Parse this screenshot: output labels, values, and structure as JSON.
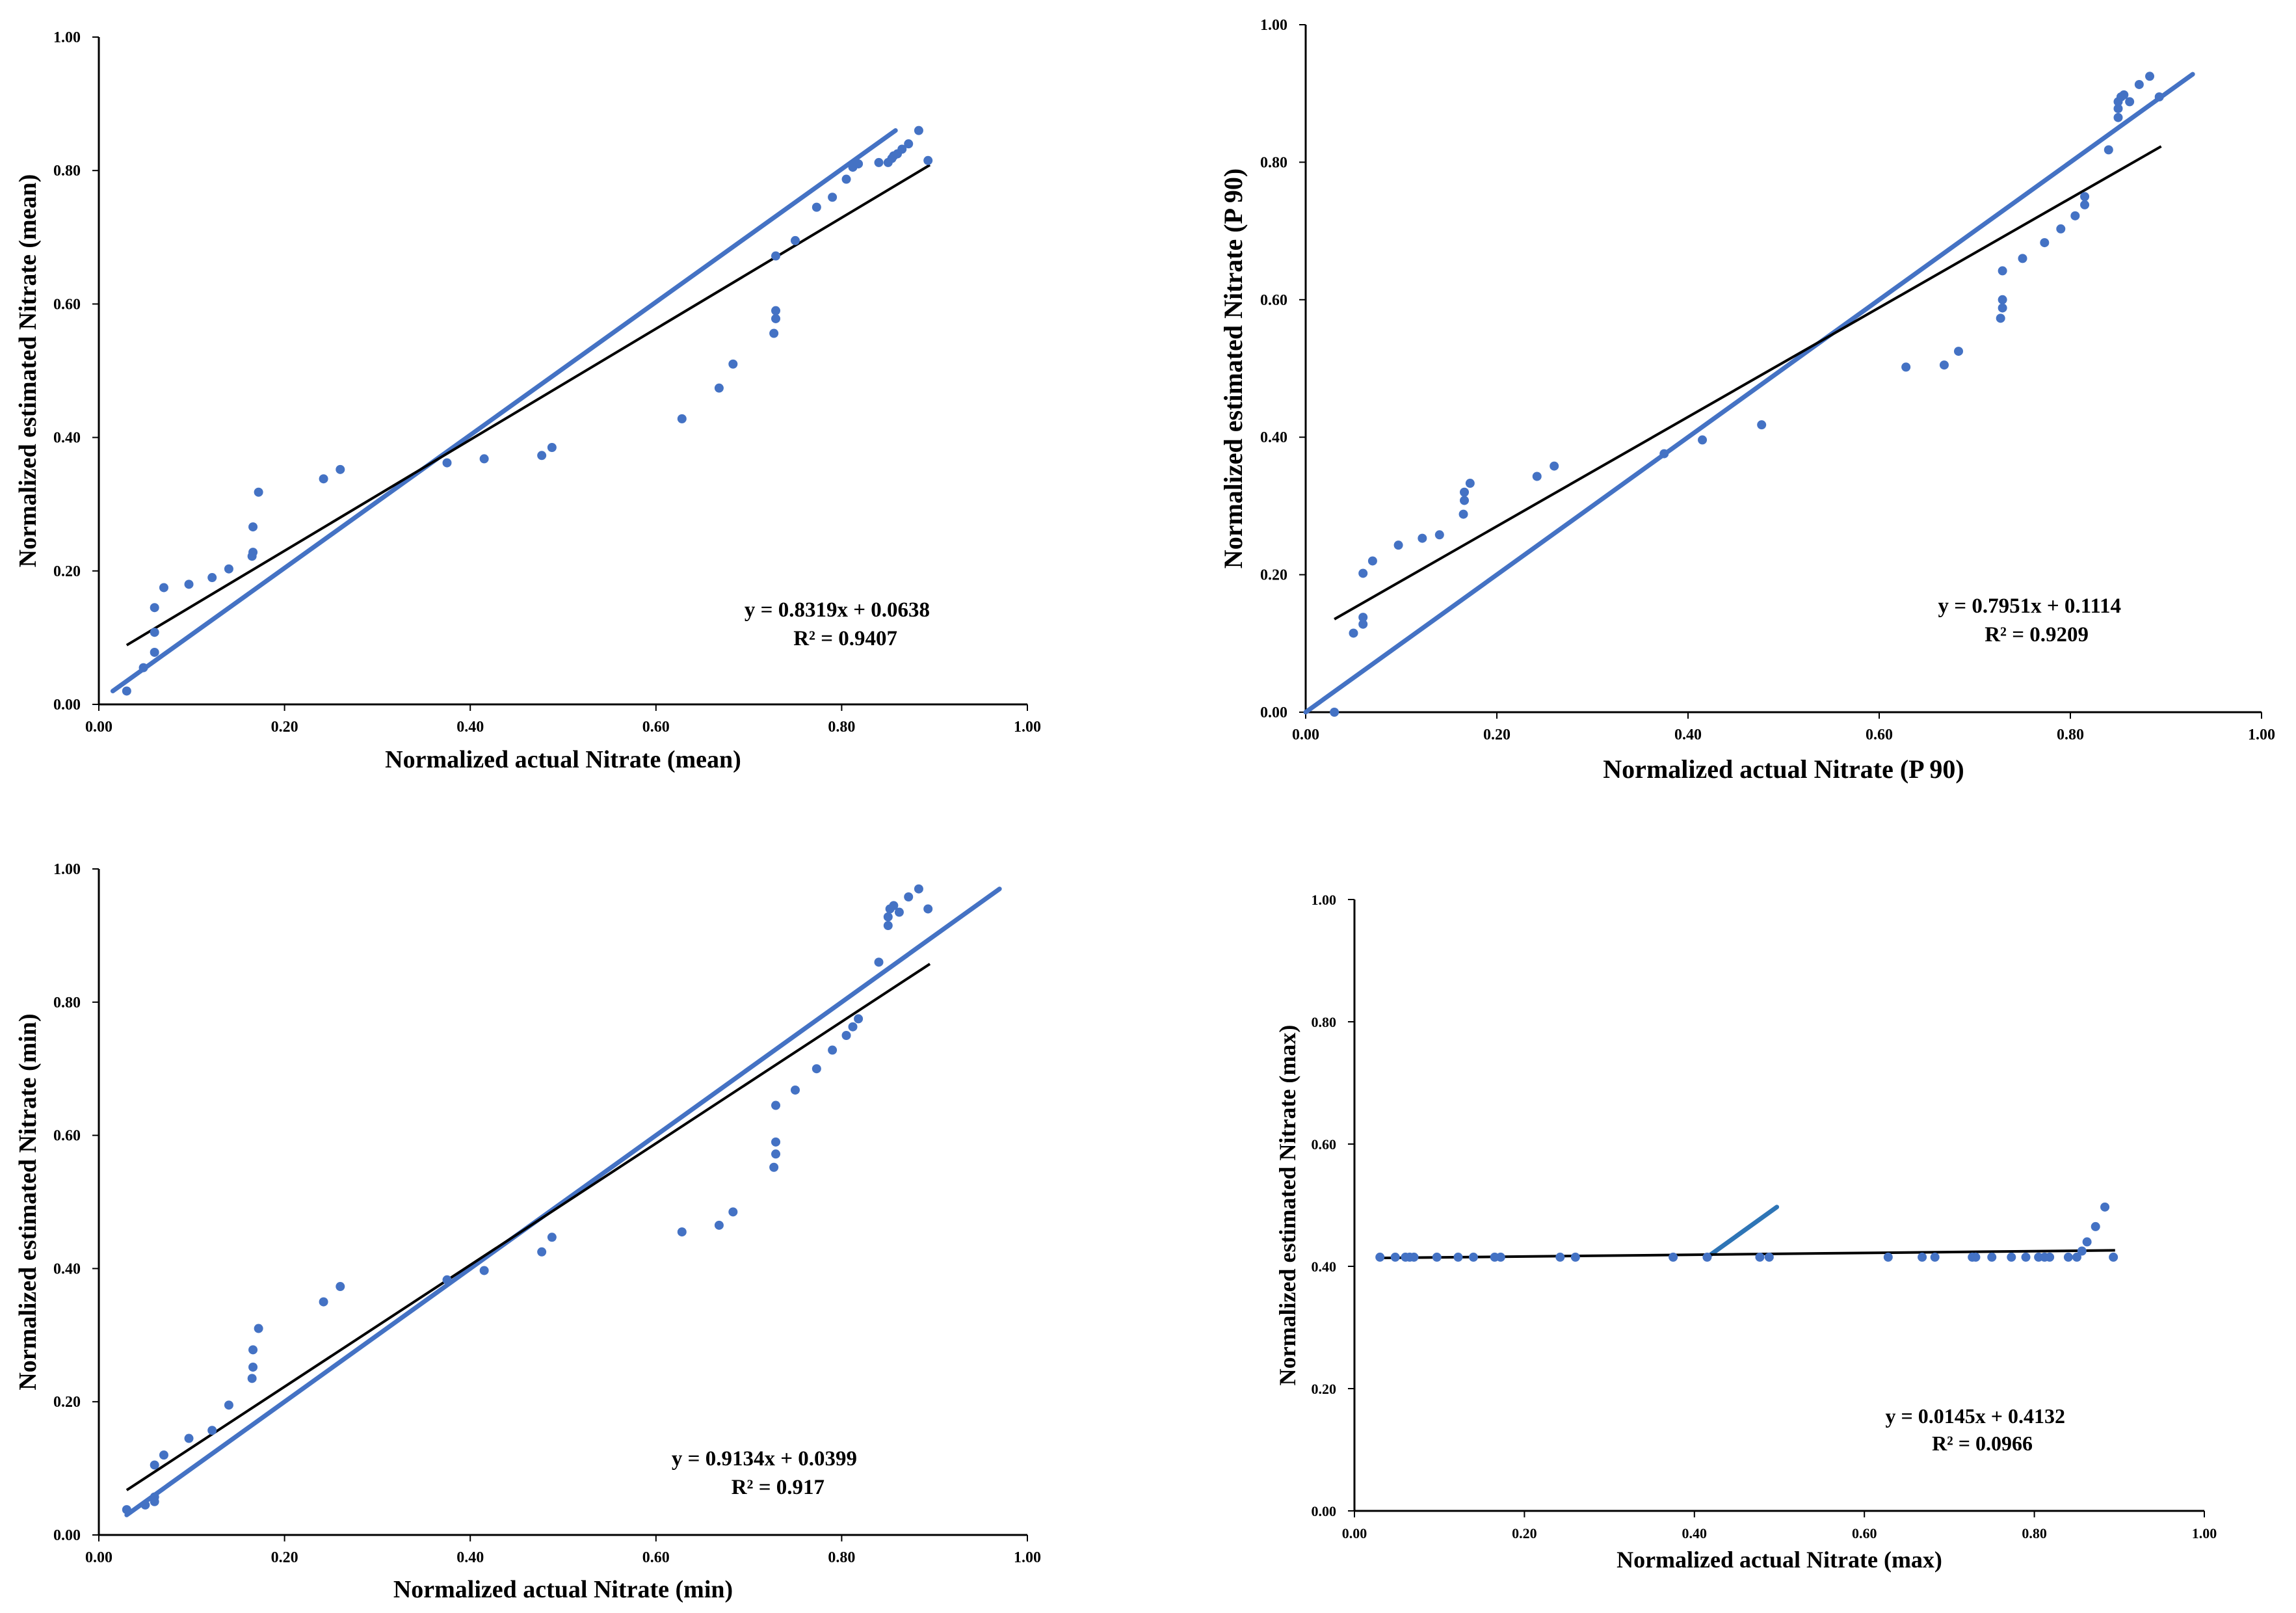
{
  "colors": {
    "points": "#4472C4",
    "identity_line": "#4472C4",
    "identity_line_max_panel": "#2E75B6",
    "fit_line": "#000000",
    "axis": "#000000"
  },
  "chart_data": [
    {
      "type": "scatter",
      "panel": "top-left",
      "xlabel": "Normalized actual Nitrate (mean)",
      "ylabel": "Normalized estimated Nitrate  (mean)",
      "xlim": [
        0,
        1
      ],
      "ylim": [
        0,
        1
      ],
      "x_ticks": [
        "0.00",
        "0.20",
        "0.40",
        "0.60",
        "0.80",
        "1.00"
      ],
      "y_ticks": [
        "0.00",
        "0.20",
        "0.40",
        "0.60",
        "0.80",
        "1.00"
      ],
      "equation": "y = 0.8319x + 0.0638",
      "r_squared": "R² = 0.9407",
      "trendline": {
        "slope": 0.8319,
        "intercept": 0.0638,
        "x_range": [
          0.03,
          0.895
        ]
      },
      "reference_line": {
        "x1": 0.015,
        "y1": 0.02,
        "x2": 0.858,
        "y2": 0.86
      },
      "points": [
        [
          0.03,
          0.02
        ],
        [
          0.048,
          0.055
        ],
        [
          0.06,
          0.078
        ],
        [
          0.06,
          0.108
        ],
        [
          0.06,
          0.145
        ],
        [
          0.07,
          0.175
        ],
        [
          0.097,
          0.18
        ],
        [
          0.122,
          0.19
        ],
        [
          0.14,
          0.203
        ],
        [
          0.165,
          0.222
        ],
        [
          0.166,
          0.228
        ],
        [
          0.166,
          0.266
        ],
        [
          0.172,
          0.318
        ],
        [
          0.242,
          0.338
        ],
        [
          0.26,
          0.352
        ],
        [
          0.375,
          0.362
        ],
        [
          0.415,
          0.368
        ],
        [
          0.477,
          0.373
        ],
        [
          0.488,
          0.385
        ],
        [
          0.628,
          0.428
        ],
        [
          0.668,
          0.474
        ],
        [
          0.683,
          0.51
        ],
        [
          0.727,
          0.556
        ],
        [
          0.729,
          0.578
        ],
        [
          0.729,
          0.59
        ],
        [
          0.729,
          0.672
        ],
        [
          0.75,
          0.695
        ],
        [
          0.773,
          0.745
        ],
        [
          0.79,
          0.76
        ],
        [
          0.805,
          0.787
        ],
        [
          0.812,
          0.805
        ],
        [
          0.818,
          0.81
        ],
        [
          0.84,
          0.812
        ],
        [
          0.85,
          0.812
        ],
        [
          0.854,
          0.818
        ],
        [
          0.856,
          0.822
        ],
        [
          0.86,
          0.825
        ],
        [
          0.865,
          0.832
        ],
        [
          0.872,
          0.84
        ],
        [
          0.883,
          0.86
        ],
        [
          0.893,
          0.815
        ]
      ]
    },
    {
      "type": "scatter",
      "panel": "top-right",
      "xlabel": "Normalized actual Nitrate (P 90)",
      "ylabel": "Normalized estimated Nitrate  (P 90)",
      "xlim": [
        0,
        1
      ],
      "ylim": [
        0,
        1
      ],
      "x_ticks": [
        "0.00",
        "0.20",
        "0.40",
        "0.60",
        "0.80",
        "1.00"
      ],
      "y_ticks": [
        "0.00",
        "0.20",
        "0.40",
        "0.60",
        "0.80",
        "1.00"
      ],
      "equation": "y = 0.7951x + 0.1114",
      "r_squared": "R² = 0.9209",
      "trendline": {
        "slope": 0.7951,
        "intercept": 0.1114,
        "x_range": [
          0.03,
          0.895
        ]
      },
      "reference_line": {
        "x1": 0.0,
        "y1": 0.0,
        "x2": 0.928,
        "y2": 0.928
      },
      "points": [
        [
          0.03,
          0.0
        ],
        [
          0.05,
          0.115
        ],
        [
          0.06,
          0.128
        ],
        [
          0.06,
          0.138
        ],
        [
          0.06,
          0.202
        ],
        [
          0.07,
          0.22
        ],
        [
          0.097,
          0.243
        ],
        [
          0.122,
          0.253
        ],
        [
          0.14,
          0.258
        ],
        [
          0.165,
          0.288
        ],
        [
          0.166,
          0.308
        ],
        [
          0.166,
          0.32
        ],
        [
          0.172,
          0.333
        ],
        [
          0.242,
          0.343
        ],
        [
          0.26,
          0.358
        ],
        [
          0.375,
          0.376
        ],
        [
          0.415,
          0.396
        ],
        [
          0.477,
          0.418
        ],
        [
          0.628,
          0.502
        ],
        [
          0.668,
          0.505
        ],
        [
          0.683,
          0.525
        ],
        [
          0.727,
          0.573
        ],
        [
          0.729,
          0.588
        ],
        [
          0.729,
          0.6
        ],
        [
          0.729,
          0.642
        ],
        [
          0.75,
          0.66
        ],
        [
          0.773,
          0.683
        ],
        [
          0.79,
          0.703
        ],
        [
          0.805,
          0.722
        ],
        [
          0.815,
          0.738
        ],
        [
          0.815,
          0.75
        ],
        [
          0.84,
          0.818
        ],
        [
          0.85,
          0.865
        ],
        [
          0.85,
          0.878
        ],
        [
          0.85,
          0.888
        ],
        [
          0.853,
          0.895
        ],
        [
          0.856,
          0.898
        ],
        [
          0.862,
          0.888
        ],
        [
          0.872,
          0.913
        ],
        [
          0.883,
          0.925
        ],
        [
          0.893,
          0.895
        ]
      ]
    },
    {
      "type": "scatter",
      "panel": "bottom-left",
      "xlabel": "Normalized actual Nitrate (min)",
      "ylabel": "Normalized estimated Nitrate  (min)",
      "xlim": [
        0,
        1
      ],
      "ylim": [
        0,
        1
      ],
      "x_ticks": [
        "0.00",
        "0.20",
        "0.40",
        "0.60",
        "0.80",
        "1.00"
      ],
      "y_ticks": [
        "0.00",
        "0.20",
        "0.40",
        "0.60",
        "0.80",
        "1.00"
      ],
      "equation": "y = 0.9134x + 0.0399",
      "r_squared": "R² = 0.917",
      "trendline": {
        "slope": 0.9134,
        "intercept": 0.0399,
        "x_range": [
          0.03,
          0.895
        ]
      },
      "reference_line": {
        "x1": 0.03,
        "y1": 0.03,
        "x2": 0.97,
        "y2": 0.97
      },
      "points": [
        [
          0.03,
          0.038
        ],
        [
          0.05,
          0.045
        ],
        [
          0.06,
          0.05
        ],
        [
          0.06,
          0.057
        ],
        [
          0.06,
          0.105
        ],
        [
          0.07,
          0.12
        ],
        [
          0.097,
          0.145
        ],
        [
          0.122,
          0.157
        ],
        [
          0.14,
          0.195
        ],
        [
          0.165,
          0.235
        ],
        [
          0.166,
          0.252
        ],
        [
          0.166,
          0.278
        ],
        [
          0.172,
          0.31
        ],
        [
          0.242,
          0.35
        ],
        [
          0.26,
          0.373
        ],
        [
          0.375,
          0.383
        ],
        [
          0.415,
          0.397
        ],
        [
          0.477,
          0.425
        ],
        [
          0.488,
          0.447
        ],
        [
          0.628,
          0.455
        ],
        [
          0.668,
          0.465
        ],
        [
          0.683,
          0.485
        ],
        [
          0.727,
          0.552
        ],
        [
          0.729,
          0.572
        ],
        [
          0.729,
          0.59
        ],
        [
          0.729,
          0.645
        ],
        [
          0.75,
          0.668
        ],
        [
          0.773,
          0.7
        ],
        [
          0.79,
          0.728
        ],
        [
          0.805,
          0.75
        ],
        [
          0.812,
          0.763
        ],
        [
          0.818,
          0.775
        ],
        [
          0.84,
          0.86
        ],
        [
          0.85,
          0.915
        ],
        [
          0.85,
          0.928
        ],
        [
          0.852,
          0.94
        ],
        [
          0.856,
          0.945
        ],
        [
          0.862,
          0.935
        ],
        [
          0.872,
          0.958
        ],
        [
          0.883,
          0.97
        ],
        [
          0.893,
          0.94
        ]
      ]
    },
    {
      "type": "scatter",
      "panel": "bottom-right",
      "xlabel": "Normalized actual Nitrate (max)",
      "ylabel": "Normalized estimated Nitrate  (max)",
      "xlim": [
        0,
        1
      ],
      "ylim": [
        0,
        1
      ],
      "x_ticks": [
        "0.00",
        "0.20",
        "0.40",
        "0.60",
        "0.80",
        "1.00"
      ],
      "y_ticks": [
        "0.00",
        "0.20",
        "0.40",
        "0.60",
        "0.80",
        "1.00"
      ],
      "equation": "y = 0.0145x + 0.4132",
      "r_squared": "R² = 0.0966",
      "trendline": {
        "slope": 0.0145,
        "intercept": 0.4132,
        "x_range": [
          0.03,
          0.895
        ]
      },
      "reference_line": {
        "x1": 0.418,
        "y1": 0.418,
        "x2": 0.497,
        "y2": 0.497
      },
      "points": [
        [
          0.03,
          0.415
        ],
        [
          0.048,
          0.415
        ],
        [
          0.06,
          0.415
        ],
        [
          0.065,
          0.415
        ],
        [
          0.07,
          0.415
        ],
        [
          0.097,
          0.415
        ],
        [
          0.122,
          0.415
        ],
        [
          0.14,
          0.415
        ],
        [
          0.165,
          0.415
        ],
        [
          0.172,
          0.415
        ],
        [
          0.242,
          0.415
        ],
        [
          0.26,
          0.415
        ],
        [
          0.375,
          0.415
        ],
        [
          0.415,
          0.415
        ],
        [
          0.477,
          0.415
        ],
        [
          0.488,
          0.415
        ],
        [
          0.628,
          0.415
        ],
        [
          0.668,
          0.415
        ],
        [
          0.683,
          0.415
        ],
        [
          0.727,
          0.415
        ],
        [
          0.731,
          0.415
        ],
        [
          0.75,
          0.415
        ],
        [
          0.773,
          0.415
        ],
        [
          0.79,
          0.415
        ],
        [
          0.805,
          0.415
        ],
        [
          0.812,
          0.415
        ],
        [
          0.818,
          0.415
        ],
        [
          0.84,
          0.415
        ],
        [
          0.85,
          0.415
        ],
        [
          0.856,
          0.425
        ],
        [
          0.862,
          0.44
        ],
        [
          0.872,
          0.465
        ],
        [
          0.883,
          0.497
        ],
        [
          0.893,
          0.415
        ]
      ]
    }
  ]
}
